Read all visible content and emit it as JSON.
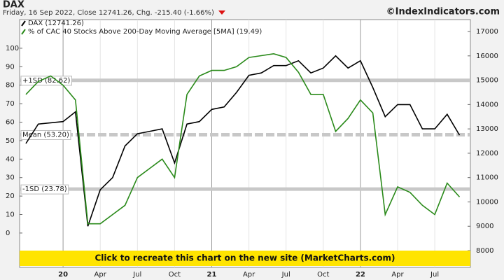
{
  "chart_data": {
    "type": "line",
    "title": "DAX",
    "subtitle": "Friday, 16 Sep 2022, Close 12741.26, Chg. -215.40 (-1.66%)",
    "source": "©IndexIndicators.com",
    "banner": "Click to recreate this chart on the new site (MarketCharts.com)",
    "categories": [
      null,
      null,
      null,
      "20",
      null,
      null,
      "Apr",
      null,
      null,
      "Jul",
      null,
      null,
      "Oct",
      null,
      null,
      "21",
      null,
      null,
      "Apr",
      null,
      null,
      "Jul",
      null,
      null,
      "Oct",
      null,
      null,
      "22",
      null,
      null,
      "Apr",
      null,
      null,
      "Jul",
      null,
      null
    ],
    "series": [
      {
        "name": "DAX (12741.26)",
        "color": "#000000",
        "axis": "y2",
        "values": [
          12400,
          13200,
          13250,
          13300,
          13700,
          9000,
          10500,
          11000,
          12300,
          12800,
          12900,
          13000,
          11600,
          13200,
          13300,
          13800,
          13900,
          14500,
          15200,
          15300,
          15600,
          15600,
          15800,
          15300,
          15500,
          16000,
          15500,
          15800,
          14700,
          13500,
          14000,
          14000,
          13000,
          13000,
          13600,
          12741.26
        ]
      },
      {
        "name": "% of CAC 40 Stocks Above 200-Day Moving Average [5MA] (19.49)",
        "color": "#2a8a1a",
        "axis": "y",
        "values": [
          75,
          82,
          85,
          80,
          72,
          5,
          5,
          10,
          15,
          30,
          35,
          40,
          30,
          75,
          85,
          88,
          88,
          90,
          95,
          96,
          97,
          95,
          87,
          75,
          75,
          55,
          62,
          72,
          65,
          10,
          25,
          22,
          15,
          10,
          27,
          19.49
        ]
      }
    ],
    "reference_lines": [
      {
        "label": "+1SD (82.62)",
        "value": 82.62
      },
      {
        "label": "Mean (53.20)",
        "value": 53.2
      },
      {
        "label": "-1SD (23.78)",
        "value": 23.78
      }
    ],
    "ylim": [
      -18.6,
      115.5
    ],
    "yticks": [
      0,
      10,
      20,
      30,
      40,
      50,
      60,
      70,
      80,
      90,
      100
    ],
    "y2lim": [
      7310,
      17490
    ],
    "y2ticks": [
      8000,
      9000,
      10000,
      11000,
      12000,
      13000,
      14000,
      15000,
      16000,
      17000
    ],
    "grid": true
  }
}
